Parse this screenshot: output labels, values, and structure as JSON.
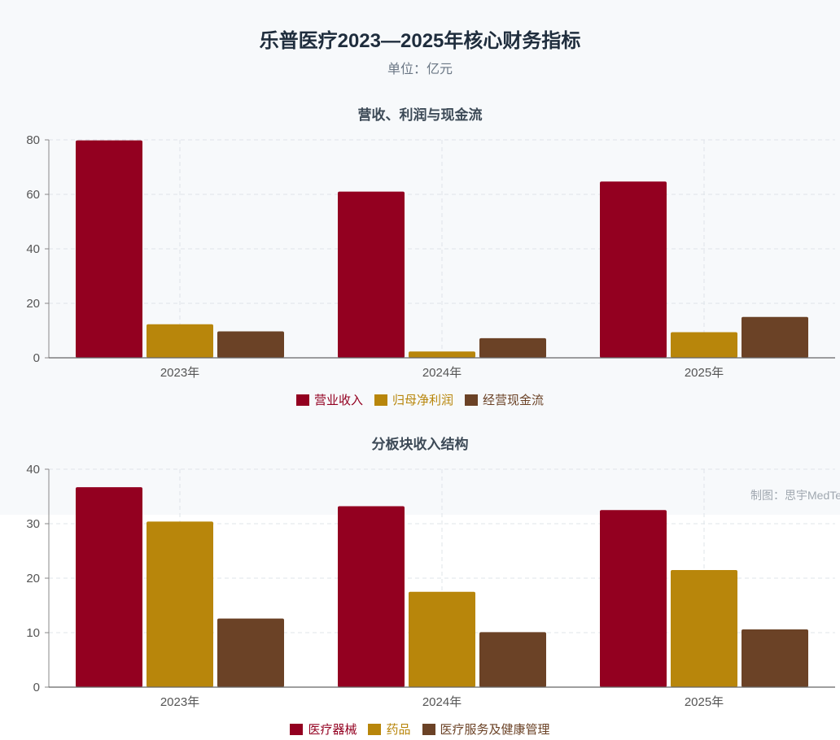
{
  "header": {
    "title": "乐普医疗2023—2025年核心财务指标",
    "subtitle": "单位：亿元",
    "watermark": "制图：思宇MedTech"
  },
  "colors": [
    "#930020",
    "#b8860b",
    "#6b4226"
  ],
  "chart_data": [
    {
      "type": "bar",
      "title": "营收、利润与现金流",
      "categories": [
        "2023年",
        "2024年",
        "2025年"
      ],
      "series": [
        {
          "name": "营业收入",
          "values": [
            79.8,
            61.0,
            64.7
          ]
        },
        {
          "name": "归母净利润",
          "values": [
            12.3,
            2.3,
            9.4
          ]
        },
        {
          "name": "经营现金流",
          "values": [
            9.7,
            7.2,
            15.0
          ]
        }
      ],
      "ylim": [
        0,
        80
      ],
      "yticks": [
        0,
        20,
        40,
        60,
        80
      ],
      "grid": true,
      "legend": "bottom-center"
    },
    {
      "type": "bar",
      "title": "分板块收入结构",
      "categories": [
        "2023年",
        "2024年",
        "2025年"
      ],
      "series": [
        {
          "name": "医疗器械",
          "values": [
            36.7,
            33.2,
            32.5
          ]
        },
        {
          "name": "药品",
          "values": [
            30.4,
            17.5,
            21.5
          ]
        },
        {
          "name": "医疗服务及健康管理",
          "values": [
            12.6,
            10.1,
            10.6
          ]
        }
      ],
      "ylim": [
        0,
        40
      ],
      "yticks": [
        0,
        10,
        20,
        30,
        40
      ],
      "grid": true,
      "legend": "bottom-center"
    }
  ]
}
